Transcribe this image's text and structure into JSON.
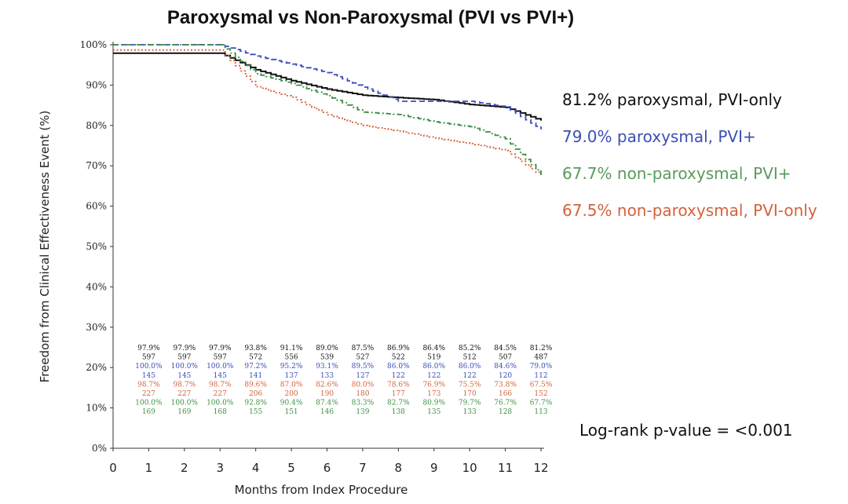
{
  "chart_data": {
    "type": "line",
    "title": "Paroxysmal vs Non-Paroxysmal (PVI vs PVI+)",
    "xlabel": "Months from Index Procedure",
    "ylabel": "Freedom from Clinical Effectiveness Event (%)",
    "xlim": [
      0,
      12
    ],
    "ylim": [
      0,
      100
    ],
    "x_ticks": [
      "0",
      "1",
      "2",
      "3",
      "4",
      "5",
      "6",
      "7",
      "8",
      "9",
      "10",
      "11",
      "12"
    ],
    "y_ticks": [
      "0%",
      "10%",
      "20%",
      "30%",
      "40%",
      "50%",
      "60%",
      "70%",
      "80%",
      "90%",
      "100%"
    ],
    "grid": false,
    "p_value_text": "Log-rank p-value = <0.001",
    "series": [
      {
        "name": "paroxysmal, PVI-only",
        "legend": "81.2% paroxysmal, PVI-only",
        "color": "#111111",
        "line_style": "solid",
        "x": [
          0,
          1,
          2,
          3,
          4,
          5,
          6,
          7,
          8,
          9,
          10,
          11,
          12
        ],
        "values": [
          97.9,
          97.9,
          97.9,
          97.9,
          93.8,
          91.1,
          89.0,
          87.5,
          86.9,
          86.4,
          85.2,
          84.5,
          81.2
        ],
        "risk_pct": [
          "97.9%",
          "97.9%",
          "97.9%",
          "93.8%",
          "91.1%",
          "89.0%",
          "87.5%",
          "86.9%",
          "86.4%",
          "85.2%",
          "84.5%",
          "81.2%"
        ],
        "risk_n": [
          "597",
          "597",
          "597",
          "572",
          "556",
          "539",
          "527",
          "522",
          "519",
          "512",
          "507",
          "487"
        ]
      },
      {
        "name": "paroxysmal, PVI+",
        "legend": "79.0% paroxysmal, PVI+",
        "color": "#3a4fb5",
        "line_style": "dashed",
        "x": [
          0,
          1,
          2,
          3,
          4,
          5,
          6,
          7,
          8,
          9,
          10,
          11,
          12
        ],
        "values": [
          100.0,
          100.0,
          100.0,
          100.0,
          97.2,
          95.2,
          93.1,
          89.5,
          86.0,
          86.0,
          86.0,
          84.6,
          79.0
        ],
        "risk_pct": [
          "100.0%",
          "100.0%",
          "100.0%",
          "97.2%",
          "95.2%",
          "93.1%",
          "89.5%",
          "86.0%",
          "86.0%",
          "86.0%",
          "84.6%",
          "79.0%"
        ],
        "risk_n": [
          "145",
          "145",
          "145",
          "141",
          "137",
          "133",
          "127",
          "122",
          "122",
          "122",
          "120",
          "112"
        ]
      },
      {
        "name": "non-paroxysmal, PVI-only",
        "legend": "67.5% non-paroxysmal, PVI-only",
        "color": "#d4623c",
        "line_style": "dotted",
        "x": [
          0,
          1,
          2,
          3,
          4,
          5,
          6,
          7,
          8,
          9,
          10,
          11,
          12
        ],
        "values": [
          98.7,
          98.7,
          98.7,
          98.7,
          89.6,
          87.0,
          82.6,
          80.0,
          78.6,
          76.9,
          75.5,
          73.8,
          67.5
        ],
        "risk_pct": [
          "98.7%",
          "98.7%",
          "98.7%",
          "89.6%",
          "87.0%",
          "82.6%",
          "80.0%",
          "78.6%",
          "76.9%",
          "75.5%",
          "73.8%",
          "67.5%"
        ],
        "risk_n": [
          "227",
          "227",
          "227",
          "206",
          "200",
          "190",
          "180",
          "177",
          "173",
          "170",
          "166",
          "152"
        ]
      },
      {
        "name": "non-paroxysmal, PVI+",
        "legend": "67.7% non-paroxysmal, PVI+",
        "color": "#3e8f45",
        "line_style": "dashdot",
        "x": [
          0,
          1,
          2,
          3,
          4,
          5,
          6,
          7,
          8,
          9,
          10,
          11,
          12
        ],
        "values": [
          100.0,
          100.0,
          100.0,
          100.0,
          92.8,
          90.4,
          87.4,
          83.3,
          82.7,
          80.9,
          79.7,
          76.7,
          67.7
        ],
        "risk_pct": [
          "100.0%",
          "100.0%",
          "100.0%",
          "92.8%",
          "90.4%",
          "87.4%",
          "83.3%",
          "82.7%",
          "80.9%",
          "79.7%",
          "76.7%",
          "67.7%"
        ],
        "risk_n": [
          "169",
          "169",
          "168",
          "155",
          "151",
          "146",
          "139",
          "138",
          "135",
          "133",
          "128",
          "113"
        ]
      }
    ],
    "risk_row_order": [
      0,
      1,
      2,
      3
    ],
    "legend_order": [
      0,
      1,
      3,
      2
    ],
    "legend_colors": [
      "#111111",
      "#3a4fb5",
      "#5a9a5f",
      "#d4623c"
    ]
  }
}
